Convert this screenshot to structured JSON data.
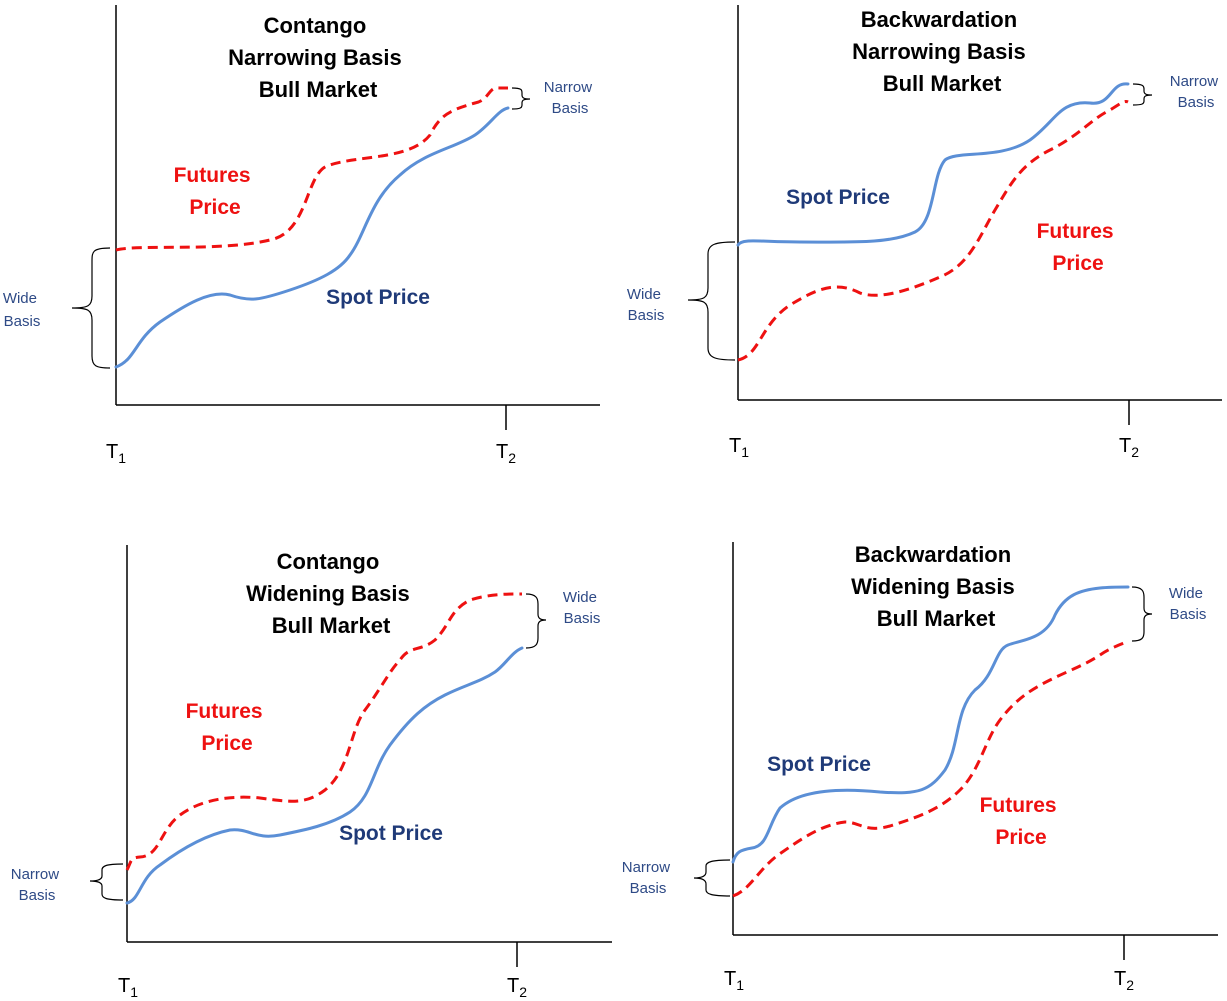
{
  "colors": {
    "spot_line": "#5b8fd6",
    "spot_text": "#1f3a78",
    "futures": "#ee1111",
    "basis_text": "#2e4a86",
    "axis": "#000000"
  },
  "panels": [
    {
      "title": [
        "Contango",
        "Narrowing Basis",
        "Bull Market"
      ],
      "futures_label": [
        "Futures",
        "Price"
      ],
      "spot_label": "Spot Price",
      "start_basis": [
        "Wide",
        "Basis"
      ],
      "end_basis": [
        "Narrow",
        "Basis"
      ],
      "t1": {
        "main": "T",
        "sub": "1"
      },
      "t2": {
        "main": "T",
        "sub": "2"
      }
    },
    {
      "title": [
        "Backwardation",
        "Narrowing Basis",
        "Bull Market"
      ],
      "futures_label": [
        "Futures",
        "Price"
      ],
      "spot_label": "Spot Price",
      "start_basis": [
        "Wide",
        "Basis"
      ],
      "end_basis": [
        "Narrow",
        "Basis"
      ],
      "t1": {
        "main": "T",
        "sub": "1"
      },
      "t2": {
        "main": "T",
        "sub": "2"
      }
    },
    {
      "title": [
        "Contango",
        "Widening Basis",
        "Bull Market"
      ],
      "futures_label": [
        "Futures",
        "Price"
      ],
      "spot_label": "Spot Price",
      "start_basis": [
        "Narrow",
        "Basis"
      ],
      "end_basis": [
        "Wide",
        "Basis"
      ],
      "t1": {
        "main": "T",
        "sub": "1"
      },
      "t2": {
        "main": "T",
        "sub": "2"
      }
    },
    {
      "title": [
        "Backwardation",
        "Widening Basis",
        "Bull Market"
      ],
      "futures_label": [
        "Futures",
        "Price"
      ],
      "spot_label": "Spot Price",
      "start_basis": [
        "Narrow",
        "Basis"
      ],
      "end_basis": [
        "Wide",
        "Basis"
      ],
      "t1": {
        "main": "T",
        "sub": "1"
      },
      "t2": {
        "main": "T",
        "sub": "2"
      }
    }
  ]
}
